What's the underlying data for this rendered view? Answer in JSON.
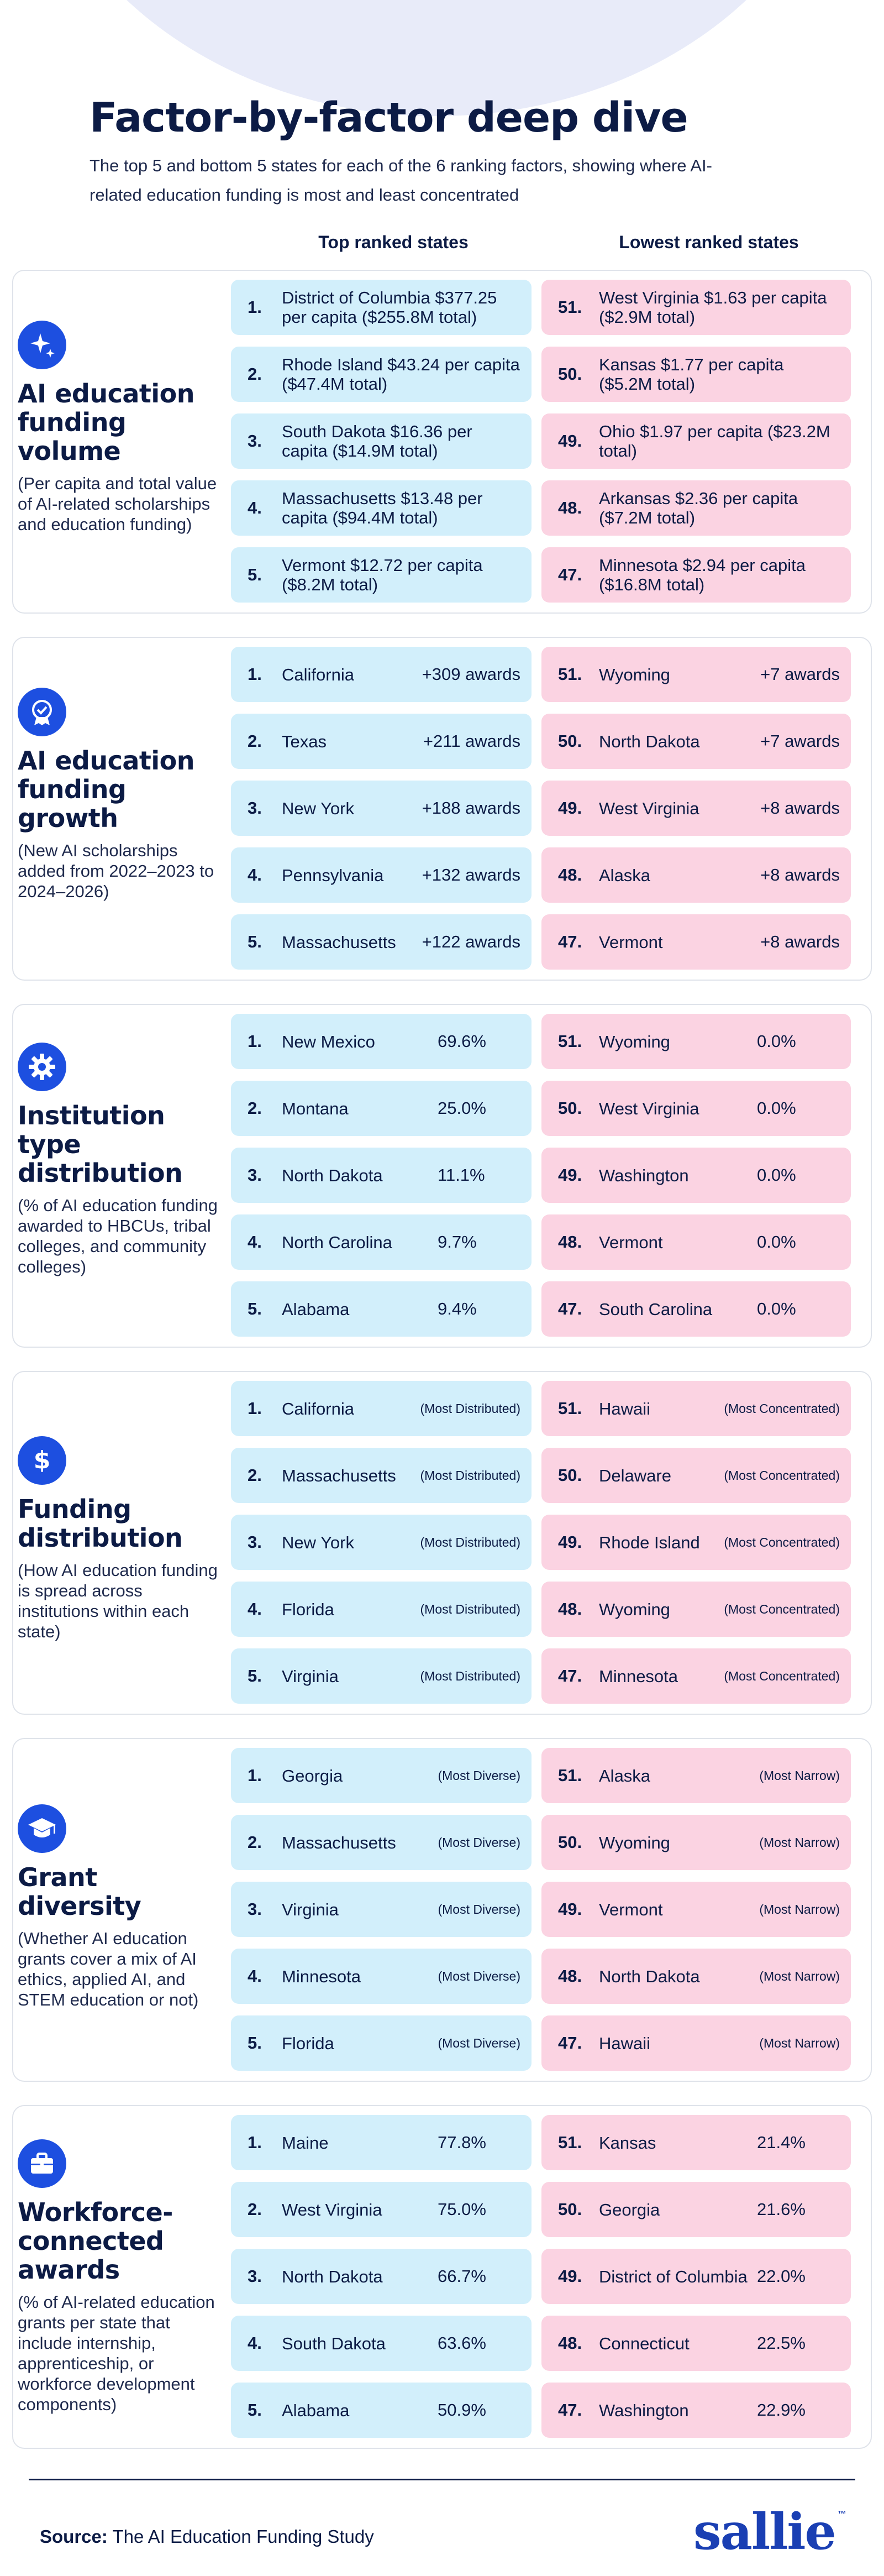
{
  "header": {
    "title": "Factor-by-factor deep dive",
    "subtitle": "The top 5 and bottom 5 states for each of the 6 ranking factors, showing where AI-related education funding is most and least concentrated"
  },
  "columns": {
    "top": "Top ranked states",
    "low": "Lowest ranked states"
  },
  "colors": {
    "accent": "#1d4fe0",
    "top_row": "#d2effb",
    "low_row": "#fbd3e2",
    "text": "#0c1b45"
  },
  "factors": [
    {
      "icon": "sparkle-icon",
      "name": "AI education funding volume",
      "desc": "(Per capita and total value of AI-related scholarships and education funding)",
      "top": [
        {
          "rank": "1.",
          "state": "District of Columbia $377.25 per capita ($255.8M total)",
          "value": ""
        },
        {
          "rank": "2.",
          "state": "Rhode Island $43.24 per capita ($47.4M total)",
          "value": ""
        },
        {
          "rank": "3.",
          "state": "South Dakota $16.36 per capita ($14.9M total)",
          "value": ""
        },
        {
          "rank": "4.",
          "state": "Massachusetts $13.48 per capita ($94.4M total)",
          "value": ""
        },
        {
          "rank": "5.",
          "state": "Vermont $12.72 per capita ($8.2M total)",
          "value": ""
        }
      ],
      "low": [
        {
          "rank": "51.",
          "state": "West Virginia $1.63 per capita ($2.9M total)",
          "value": ""
        },
        {
          "rank": "50.",
          "state": "Kansas $1.77 per capita ($5.2M total)",
          "value": ""
        },
        {
          "rank": "49.",
          "state": "Ohio $1.97 per capita ($23.2M total)",
          "value": ""
        },
        {
          "rank": "48.",
          "state": "Arkansas $2.36 per capita ($7.2M total)",
          "value": ""
        },
        {
          "rank": "47.",
          "state": "Minnesota $2.94 per capita ($16.8M total)",
          "value": ""
        }
      ]
    },
    {
      "icon": "award-badge-icon",
      "name": "AI education funding growth",
      "desc": "(New AI scholarships added from 2022–2023 to 2024–2026)",
      "top": [
        {
          "rank": "1.",
          "state": "California",
          "value": "+309 awards"
        },
        {
          "rank": "2.",
          "state": "Texas",
          "value": "+211 awards"
        },
        {
          "rank": "3.",
          "state": "New York",
          "value": "+188 awards"
        },
        {
          "rank": "4.",
          "state": "Pennsylvania",
          "value": "+132 awards"
        },
        {
          "rank": "5.",
          "state": "Massachusetts",
          "value": "+122 awards"
        }
      ],
      "low": [
        {
          "rank": "51.",
          "state": "Wyoming",
          "value": "+7 awards"
        },
        {
          "rank": "50.",
          "state": "North Dakota",
          "value": "+7 awards"
        },
        {
          "rank": "49.",
          "state": "West Virginia",
          "value": "+8 awards"
        },
        {
          "rank": "48.",
          "state": "Alaska",
          "value": "+8 awards"
        },
        {
          "rank": "47.",
          "state": "Vermont",
          "value": "+8 awards"
        }
      ]
    },
    {
      "icon": "gear-icon",
      "name": "Institution type distribution",
      "desc": "(% of AI education funding awarded to HBCUs, tribal colleges, and community colleges)",
      "top": [
        {
          "rank": "1.",
          "state": "New Mexico",
          "value": "69.6%"
        },
        {
          "rank": "2.",
          "state": "Montana",
          "value": "25.0%"
        },
        {
          "rank": "3.",
          "state": "North Dakota",
          "value": "11.1%"
        },
        {
          "rank": "4.",
          "state": "North Carolina",
          "value": "9.7%"
        },
        {
          "rank": "5.",
          "state": "Alabama",
          "value": "9.4%"
        }
      ],
      "low": [
        {
          "rank": "51.",
          "state": "Wyoming",
          "value": "0.0%"
        },
        {
          "rank": "50.",
          "state": "West Virginia",
          "value": "0.0%"
        },
        {
          "rank": "49.",
          "state": "Washington",
          "value": "0.0%"
        },
        {
          "rank": "48.",
          "state": "Vermont",
          "value": "0.0%"
        },
        {
          "rank": "47.",
          "state": "South Carolina",
          "value": "0.0%"
        }
      ]
    },
    {
      "icon": "dollar-icon",
      "name": "Funding distribution",
      "desc": "(How AI education funding is spread across institutions within each state)",
      "top": [
        {
          "rank": "1.",
          "state": "California",
          "value": "(Most Distributed)"
        },
        {
          "rank": "2.",
          "state": "Massachusetts",
          "value": "(Most Distributed)"
        },
        {
          "rank": "3.",
          "state": "New York",
          "value": "(Most Distributed)"
        },
        {
          "rank": "4.",
          "state": "Florida",
          "value": "(Most Distributed)"
        },
        {
          "rank": "5.",
          "state": "Virginia",
          "value": "(Most Distributed)"
        }
      ],
      "low": [
        {
          "rank": "51.",
          "state": "Hawaii",
          "value": "(Most Concentrated)"
        },
        {
          "rank": "50.",
          "state": "Delaware",
          "value": "(Most Concentrated)"
        },
        {
          "rank": "49.",
          "state": "Rhode Island",
          "value": "(Most Concentrated)"
        },
        {
          "rank": "48.",
          "state": "Wyoming",
          "value": "(Most Concentrated)"
        },
        {
          "rank": "47.",
          "state": "Minnesota",
          "value": "(Most Concentrated)"
        }
      ]
    },
    {
      "icon": "graduation-cap-icon",
      "name": "Grant diversity",
      "desc": "(Whether AI education grants cover a mix of AI ethics, applied AI, and STEM education or not)",
      "top": [
        {
          "rank": "1.",
          "state": "Georgia",
          "value": "(Most Diverse)"
        },
        {
          "rank": "2.",
          "state": "Massachusetts",
          "value": "(Most Diverse)"
        },
        {
          "rank": "3.",
          "state": "Virginia",
          "value": "(Most Diverse)"
        },
        {
          "rank": "4.",
          "state": "Minnesota",
          "value": "(Most Diverse)"
        },
        {
          "rank": "5.",
          "state": "Florida",
          "value": "(Most Diverse)"
        }
      ],
      "low": [
        {
          "rank": "51.",
          "state": "Alaska",
          "value": "(Most Narrow)"
        },
        {
          "rank": "50.",
          "state": "Wyoming",
          "value": "(Most Narrow)"
        },
        {
          "rank": "49.",
          "state": "Vermont",
          "value": "(Most Narrow)"
        },
        {
          "rank": "48.",
          "state": "North Dakota",
          "value": "(Most Narrow)"
        },
        {
          "rank": "47.",
          "state": "Hawaii",
          "value": "(Most Narrow)"
        }
      ]
    },
    {
      "icon": "briefcase-icon",
      "name": "Workforce-connected awards",
      "desc": "(% of AI-related education grants per state that include internship, apprenticeship, or workforce development components)",
      "top": [
        {
          "rank": "1.",
          "state": "Maine",
          "value": "77.8%"
        },
        {
          "rank": "2.",
          "state": "West Virginia",
          "value": "75.0%"
        },
        {
          "rank": "3.",
          "state": "North Dakota",
          "value": "66.7%"
        },
        {
          "rank": "4.",
          "state": "South Dakota",
          "value": "63.6%"
        },
        {
          "rank": "5.",
          "state": "Alabama",
          "value": "50.9%"
        }
      ],
      "low": [
        {
          "rank": "51.",
          "state": "Kansas",
          "value": "21.4%"
        },
        {
          "rank": "50.",
          "state": "Georgia",
          "value": "21.6%"
        },
        {
          "rank": "49.",
          "state": "District of Columbia",
          "value": "22.0%"
        },
        {
          "rank": "48.",
          "state": "Connecticut",
          "value": "22.5%"
        },
        {
          "rank": "47.",
          "state": "Washington",
          "value": "22.9%"
        }
      ]
    }
  ],
  "footer": {
    "source_label": "Source:",
    "source_text": "The AI Education Funding Study",
    "logo": "sallie",
    "logo_mark": "™"
  }
}
